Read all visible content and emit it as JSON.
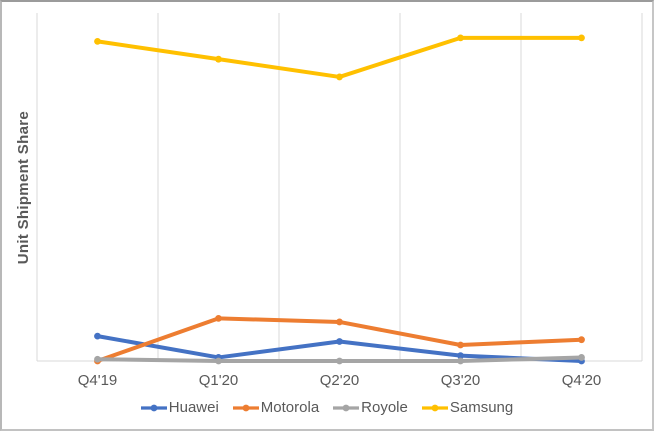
{
  "figure": {
    "title": "",
    "background": "#FFFFFF",
    "border_color": "#ABABAB"
  },
  "colors": {
    "gridline": "#D9D9D9",
    "axis_line": "#D9D9D9",
    "axis_text": "#595959"
  },
  "chart_data": {
    "type": "line",
    "title": "",
    "xlabel": "",
    "ylabel": "Unit Shipment Share",
    "categories": [
      "Q4'19",
      "Q1'20",
      "Q2'20",
      "Q3'20",
      "Q4'20"
    ],
    "series": [
      {
        "name": "Huawei",
        "color": "#4472C4",
        "values": [
          7,
          1,
          5.5,
          1.5,
          0
        ]
      },
      {
        "name": "Motorola",
        "color": "#ED7D31",
        "values": [
          0,
          12,
          11,
          4.5,
          6
        ]
      },
      {
        "name": "Royole",
        "color": "#A5A5A5",
        "values": [
          0.5,
          0,
          0,
          0,
          1
        ]
      },
      {
        "name": "Samsung",
        "color": "#FFC000",
        "values": [
          90,
          85,
          80,
          91,
          91
        ]
      }
    ],
    "ylim": [
      0,
      98
    ],
    "y_tick_labels": [],
    "grid": "vertical-only",
    "markers": true,
    "legend_position": "bottom"
  }
}
